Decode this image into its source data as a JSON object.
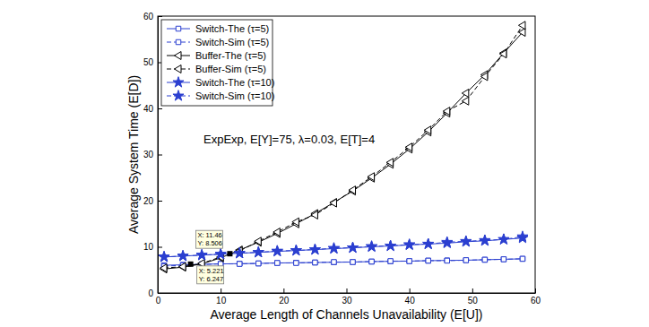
{
  "chart_data": {
    "type": "line",
    "x_label": "Average Length of Channels Unavailability (E[U])",
    "y_label": "Average System Time (E[D])",
    "annotation_text": "ExpExp, E[Y]=75, λ=0.03, E[T]=4",
    "x": [
      1,
      4,
      7,
      10,
      13,
      16,
      19,
      22,
      25,
      28,
      31,
      34,
      37,
      40,
      43,
      46,
      49,
      52,
      55,
      58
    ],
    "series": [
      {
        "name": "Switch-The (τ=5)",
        "color": "#2b3fd0",
        "marker": "square",
        "line_style": "solid",
        "values": [
          6.0,
          6.1,
          6.2,
          6.3,
          6.35,
          6.4,
          6.5,
          6.55,
          6.6,
          6.65,
          6.7,
          6.8,
          6.85,
          6.9,
          7.0,
          7.05,
          7.1,
          7.2,
          7.3,
          7.4
        ]
      },
      {
        "name": "Switch-Sim (τ=5)",
        "color": "#2b3fd0",
        "marker": "square",
        "line_style": "dashed",
        "values": [
          5.8,
          6.0,
          6.2,
          6.3,
          6.3,
          6.4,
          6.5,
          6.5,
          6.6,
          6.7,
          6.7,
          6.8,
          6.9,
          6.9,
          7.0,
          7.0,
          7.1,
          7.2,
          7.3,
          7.4
        ]
      },
      {
        "name": "Buffer-The (τ=5)",
        "color": "#000000",
        "marker": "triangle-left",
        "line_style": "solid",
        "values": [
          5.2,
          5.6,
          6.3,
          7.6,
          9.3,
          11.0,
          12.9,
          15.0,
          17.2,
          19.6,
          22.1,
          24.9,
          27.9,
          31.2,
          34.9,
          39.0,
          43.3,
          47.3,
          52.0,
          56.5
        ]
      },
      {
        "name": "Buffer-Sim (τ=5)",
        "color": "#000000",
        "marker": "triangle-left",
        "line_style": "dashed",
        "values": [
          5.4,
          5.7,
          6.4,
          7.8,
          9.1,
          11.2,
          13.2,
          15.4,
          16.9,
          19.5,
          22.3,
          25.2,
          28.3,
          31.6,
          35.3,
          39.4,
          41.6,
          46.9,
          51.8,
          58.0
        ]
      },
      {
        "name": "Switch-The (τ=10)",
        "color": "#2b3fd0",
        "marker": "star",
        "line_style": "solid",
        "values": [
          7.8,
          8.0,
          8.2,
          8.4,
          8.6,
          8.8,
          9.0,
          9.2,
          9.4,
          9.6,
          9.8,
          10.0,
          10.2,
          10.4,
          10.6,
          10.8,
          11.1,
          11.3,
          11.6,
          11.9
        ]
      },
      {
        "name": "Switch-Sim (τ=10)",
        "color": "#2b3fd0",
        "marker": "star",
        "line_style": "dashed",
        "values": [
          7.8,
          8.0,
          8.2,
          8.4,
          8.6,
          8.8,
          9.1,
          9.2,
          9.4,
          9.7,
          9.8,
          10.1,
          10.2,
          10.5,
          10.6,
          11.0,
          11.2,
          11.4,
          11.6,
          12.2
        ]
      }
    ],
    "annotations": [
      {
        "x": 11.46,
        "y": 8.506,
        "lines": [
          "X: 11.46",
          "Y: 8.506"
        ]
      },
      {
        "x": 5.221,
        "y": 6.247,
        "lines": [
          "X: 5.221",
          "Y: 6.247"
        ]
      }
    ],
    "xlim": [
      0,
      60
    ],
    "xticks": [
      0,
      10,
      20,
      30,
      40,
      50,
      60
    ],
    "ylim": [
      0,
      60
    ],
    "yticks": [
      0,
      10,
      20,
      30,
      40,
      50,
      60
    ],
    "grid": false,
    "legend": "upper left"
  }
}
